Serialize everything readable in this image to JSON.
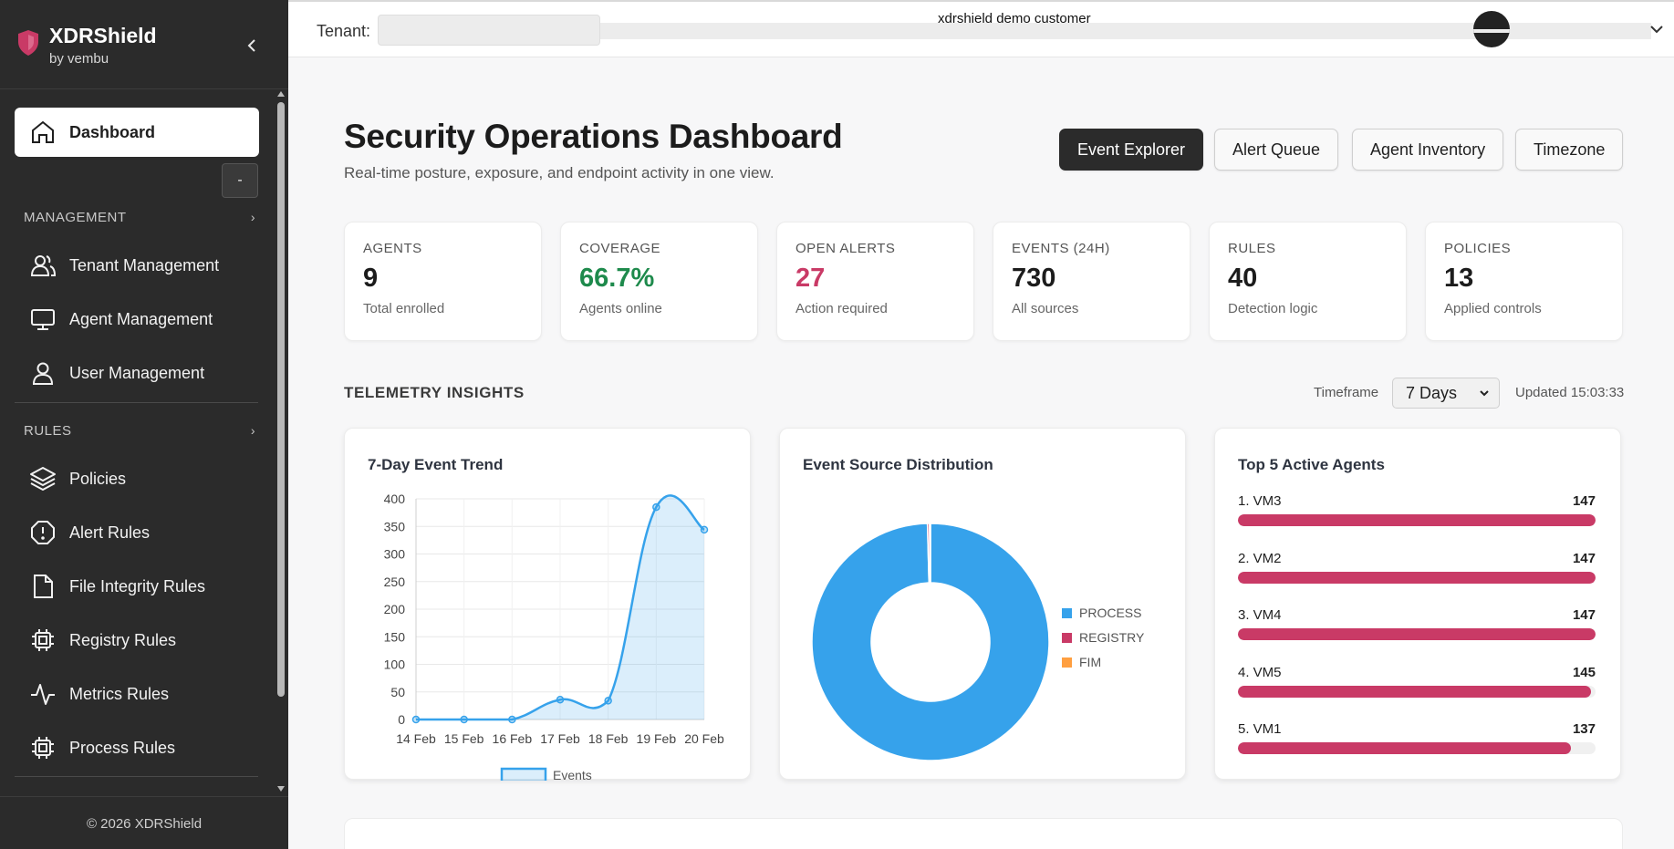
{
  "sidebar": {
    "brand_title": "XDRShield",
    "brand_sub": "by vembu",
    "dashboard_label": "Dashboard",
    "small_button_label": "-",
    "management_header": "MANAGEMENT",
    "management_items": [
      "Tenant Management",
      "Agent Management",
      "User Management"
    ],
    "rules_header": "RULES",
    "rules_items": [
      "Policies",
      "Alert Rules",
      "File Integrity Rules",
      "Registry Rules",
      "Metrics Rules",
      "Process Rules"
    ],
    "copyright": "© 2026 XDRShield",
    "brand_color": "#c93a66"
  },
  "topbar": {
    "tenant_label": "Tenant:",
    "tenant_value": "xdrshield demo customer"
  },
  "header": {
    "title": "Security Operations Dashboard",
    "subtitle": "Real-time posture, exposure, and endpoint activity in one view.",
    "actions": [
      "Event Explorer",
      "Alert Queue",
      "Agent Inventory",
      "Timezone"
    ]
  },
  "kpis": [
    {
      "label": "AGENTS",
      "value": "9",
      "sub": "Total enrolled",
      "color": "#1c1c1c"
    },
    {
      "label": "COVERAGE",
      "value": "66.7%",
      "sub": "Agents online",
      "color": "#1e8a4c"
    },
    {
      "label": "OPEN ALERTS",
      "value": "27",
      "sub": "Action required",
      "color": "#c93a66"
    },
    {
      "label": "EVENTS (24H)",
      "value": "730",
      "sub": "All sources",
      "color": "#1c1c1c"
    },
    {
      "label": "RULES",
      "value": "40",
      "sub": "Detection logic",
      "color": "#1c1c1c"
    },
    {
      "label": "POLICIES",
      "value": "13",
      "sub": "Applied controls",
      "color": "#1c1c1c"
    }
  ],
  "telemetry": {
    "section_title": "TELEMETRY INSIGHTS",
    "timeframe_label": "Timeframe",
    "timeframe_value": "7 Days",
    "updated": "Updated 15:03:33"
  },
  "chart_data": [
    {
      "type": "line",
      "title": "7-Day Event Trend",
      "categories": [
        "14 Feb",
        "15 Feb",
        "16 Feb",
        "17 Feb",
        "18 Feb",
        "19 Feb",
        "20 Feb"
      ],
      "series": [
        {
          "name": "Events",
          "values": [
            0,
            0,
            0,
            36,
            34,
            385,
            344
          ],
          "color": "#36a2eb"
        }
      ],
      "ylim": [
        0,
        400
      ],
      "yticks": [
        0,
        50,
        100,
        150,
        200,
        250,
        300,
        350,
        400
      ],
      "grid": true,
      "legend": "bottom",
      "area_fill": true
    },
    {
      "type": "pie",
      "title": "Event Source Distribution",
      "donut": true,
      "labels": [
        "PROCESS",
        "REGISTRY",
        "FIM"
      ],
      "values": [
        727,
        2,
        1
      ],
      "colors": [
        "#36a2eb",
        "#c93a66",
        "#ff9f40"
      ],
      "legend": "right"
    },
    {
      "type": "bar",
      "title": "Top 5 Active Agents",
      "orientation": "horizontal",
      "categories": [
        "1. VM3",
        "2. VM2",
        "3. VM4",
        "4. VM5",
        "5. VM1"
      ],
      "values": [
        147,
        147,
        147,
        145,
        137
      ],
      "max": 147,
      "color": "#c93a66"
    }
  ]
}
